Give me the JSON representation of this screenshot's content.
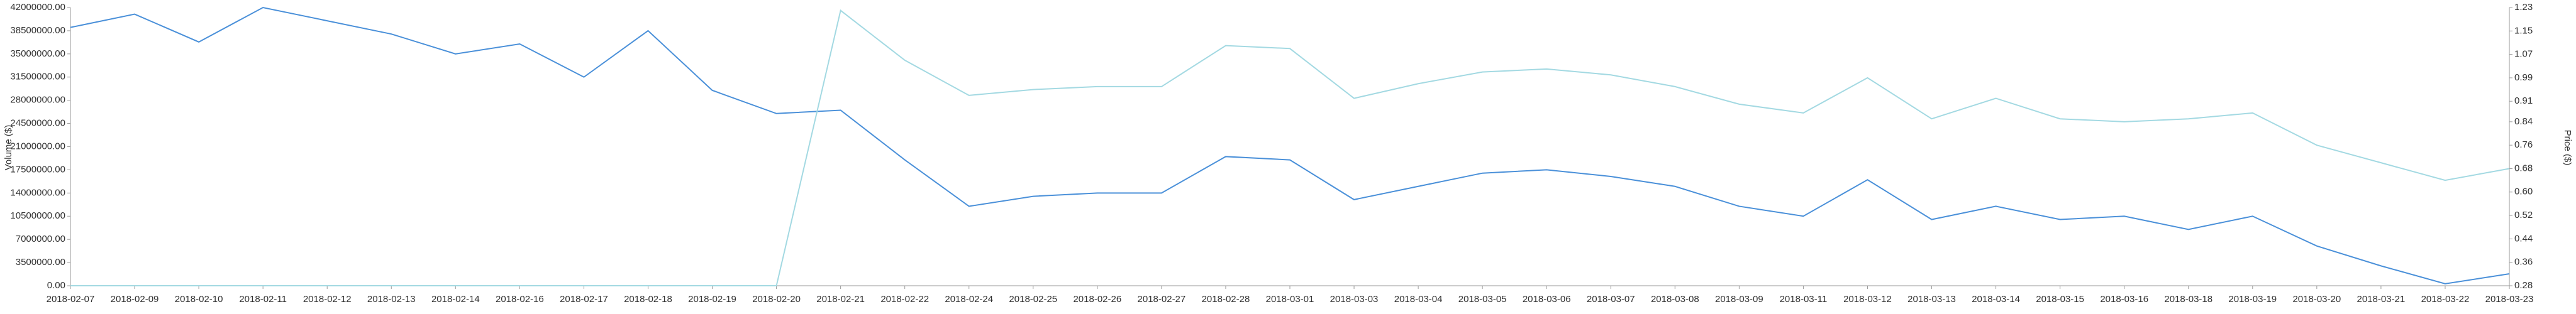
{
  "chart_data": {
    "type": "line",
    "ylabel": "Volume ($)",
    "y2label": "Price ($)",
    "categories": [
      "2018-02-07",
      "2018-02-09",
      "2018-02-10",
      "2018-02-11",
      "2018-02-12",
      "2018-02-13",
      "2018-02-14",
      "2018-02-16",
      "2018-02-17",
      "2018-02-18",
      "2018-02-19",
      "2018-02-20",
      "2018-02-21",
      "2018-02-22",
      "2018-02-24",
      "2018-02-25",
      "2018-02-26",
      "2018-02-27",
      "2018-02-28",
      "2018-03-01",
      "2018-03-03",
      "2018-03-04",
      "2018-03-05",
      "2018-03-06",
      "2018-03-07",
      "2018-03-08",
      "2018-03-09",
      "2018-03-11",
      "2018-03-12",
      "2018-03-13",
      "2018-03-14",
      "2018-03-15",
      "2018-03-16",
      "2018-03-18",
      "2018-03-19",
      "2018-03-20",
      "2018-03-21",
      "2018-03-22",
      "2018-03-23"
    ],
    "series": [
      {
        "name": "Volume",
        "color": "#4a90d9",
        "axis": "y",
        "values": [
          39000000,
          41000000,
          36800000,
          42000000,
          40000000,
          38000000,
          35000000,
          36500000,
          31500000,
          38500000,
          29500000,
          26000000,
          26500000,
          19000000,
          12000000,
          13500000,
          14000000,
          14000000,
          19500000,
          19000000,
          13000000,
          15000000,
          17000000,
          17500000,
          16500000,
          15000000,
          12000000,
          10500000,
          16000000,
          10000000,
          12000000,
          10000000,
          10500000,
          8500000,
          10500000,
          6000000,
          3000000,
          300000,
          1800000
        ]
      },
      {
        "name": "Price",
        "color": "#a3d9e2",
        "axis": "y2",
        "values": [
          0.28,
          0.28,
          0.28,
          0.28,
          0.28,
          0.28,
          0.28,
          0.28,
          0.28,
          0.28,
          0.28,
          0.28,
          1.22,
          1.05,
          0.93,
          0.95,
          0.96,
          0.96,
          1.1,
          1.09,
          0.92,
          0.97,
          1.01,
          1.02,
          1.0,
          0.96,
          0.9,
          0.87,
          0.99,
          0.85,
          0.92,
          0.85,
          0.84,
          0.85,
          0.87,
          0.76,
          0.7,
          0.64,
          0.68
        ]
      }
    ],
    "ylim": [
      0,
      42000000
    ],
    "yticks": [
      {
        "value": 0,
        "label": "0.00"
      },
      {
        "value": 3500000,
        "label": "3500000.00"
      },
      {
        "value": 7000000,
        "label": "7000000.00"
      },
      {
        "value": 10500000,
        "label": "10500000.00"
      },
      {
        "value": 14000000,
        "label": "14000000.00"
      },
      {
        "value": 17500000,
        "label": "17500000.00"
      },
      {
        "value": 21000000,
        "label": "21000000.00"
      },
      {
        "value": 24500000,
        "label": "24500000.00"
      },
      {
        "value": 28000000,
        "label": "28000000.00"
      },
      {
        "value": 31500000,
        "label": "31500000.00"
      },
      {
        "value": 35000000,
        "label": "35000000.00"
      },
      {
        "value": 38500000,
        "label": "38500000.00"
      },
      {
        "value": 42000000,
        "label": "42000000.00"
      }
    ],
    "y2lim": [
      0.28,
      1.23
    ],
    "y2ticks": [
      0.28,
      0.36,
      0.44,
      0.52,
      {
        "value": 0.6,
        "label": "0.60"
      },
      0.68,
      0.76,
      0.84,
      0.91,
      0.99,
      1.07,
      1.15,
      1.23
    ]
  }
}
